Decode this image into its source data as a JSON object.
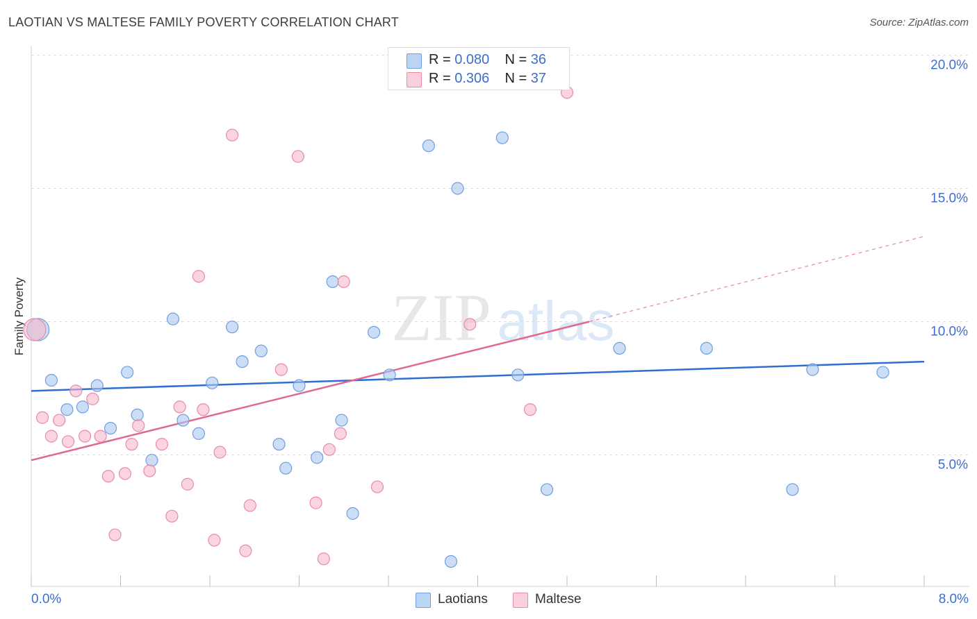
{
  "header": {
    "title": "LAOTIAN VS MALTESE FAMILY POVERTY CORRELATION CHART",
    "source": "Source: ZipAtlas.com"
  },
  "watermark": {
    "part1": "ZIP",
    "part2": "atlas"
  },
  "legend_top": [
    {
      "r_label": "R =",
      "r_value": "0.080",
      "n_label": "N =",
      "n_value": "36",
      "color": "#a8c8f0"
    },
    {
      "r_label": "R =",
      "r_value": "0.306",
      "n_label": "N =",
      "n_value": "37",
      "color": "#f7b8cb"
    }
  ],
  "legend_bottom": [
    {
      "label": "Laotians",
      "color": "#a8c8f0"
    },
    {
      "label": "Maltese",
      "color": "#f7b8cb"
    }
  ],
  "colors": {
    "laotians_fill": "#a8c8f0",
    "laotians_stroke": "#6f9ee0",
    "laotians_line": "#2f6fd1",
    "maltese_fill": "#f7b8cb",
    "maltese_stroke": "#e98aa8",
    "maltese_line": "#e06892",
    "axis_text": "#3a6fcf",
    "grid": "#dddddd"
  },
  "chart_data": {
    "type": "scatter",
    "title": "LAOTIAN VS MALTESE FAMILY POVERTY CORRELATION CHART",
    "xlabel": "",
    "ylabel": "Family Poverty",
    "xlim": [
      0.0,
      8.0
    ],
    "ylim": [
      0.0,
      20.0
    ],
    "x_tick_labels": [
      {
        "value": 0.0,
        "label": "0.0%"
      },
      {
        "value": 8.0,
        "label": "8.0%"
      }
    ],
    "y_tick_labels": [
      {
        "value": 5.0,
        "label": "5.0%"
      },
      {
        "value": 10.0,
        "label": "10.0%"
      },
      {
        "value": 15.0,
        "label": "15.0%"
      },
      {
        "value": 20.0,
        "label": "20.0%"
      }
    ],
    "grid": true,
    "legend_position": "top-center",
    "series": [
      {
        "name": "Laotians",
        "trend": {
          "x0": 0.0,
          "y0": 7.4,
          "x1": 8.0,
          "y1": 8.5
        },
        "points": [
          {
            "x": 0.06,
            "y": 9.7,
            "big": true
          },
          {
            "x": 0.18,
            "y": 7.8
          },
          {
            "x": 0.32,
            "y": 6.7
          },
          {
            "x": 0.46,
            "y": 6.8
          },
          {
            "x": 0.59,
            "y": 7.6
          },
          {
            "x": 0.71,
            "y": 6.0
          },
          {
            "x": 0.86,
            "y": 8.1
          },
          {
            "x": 0.95,
            "y": 6.5
          },
          {
            "x": 1.08,
            "y": 4.8
          },
          {
            "x": 1.27,
            "y": 10.1
          },
          {
            "x": 1.36,
            "y": 6.3
          },
          {
            "x": 1.5,
            "y": 5.8
          },
          {
            "x": 1.62,
            "y": 7.7
          },
          {
            "x": 1.8,
            "y": 9.8
          },
          {
            "x": 1.89,
            "y": 8.5
          },
          {
            "x": 2.06,
            "y": 8.9
          },
          {
            "x": 2.22,
            "y": 5.4
          },
          {
            "x": 2.28,
            "y": 4.5
          },
          {
            "x": 2.4,
            "y": 7.6
          },
          {
            "x": 2.56,
            "y": 4.9
          },
          {
            "x": 2.7,
            "y": 11.5
          },
          {
            "x": 2.78,
            "y": 6.3
          },
          {
            "x": 2.88,
            "y": 2.8
          },
          {
            "x": 3.07,
            "y": 9.6
          },
          {
            "x": 3.21,
            "y": 8.0
          },
          {
            "x": 3.56,
            "y": 16.6
          },
          {
            "x": 3.76,
            "y": 1.0
          },
          {
            "x": 3.82,
            "y": 15.0
          },
          {
            "x": 4.22,
            "y": 16.9
          },
          {
            "x": 4.36,
            "y": 8.0
          },
          {
            "x": 4.62,
            "y": 3.7
          },
          {
            "x": 5.27,
            "y": 9.0
          },
          {
            "x": 6.05,
            "y": 9.0
          },
          {
            "x": 6.82,
            "y": 3.7
          },
          {
            "x": 7.0,
            "y": 8.2
          },
          {
            "x": 7.63,
            "y": 8.1
          }
        ]
      },
      {
        "name": "Maltese",
        "trend": {
          "x0": 0.0,
          "y0": 4.8,
          "x1": 5.0,
          "y1": 10.0
        },
        "trend_extension": {
          "x0": 5.0,
          "y0": 10.0,
          "x1": 8.0,
          "y1": 13.2
        },
        "points": [
          {
            "x": 0.03,
            "y": 9.7,
            "big": true
          },
          {
            "x": 0.1,
            "y": 6.4
          },
          {
            "x": 0.18,
            "y": 5.7
          },
          {
            "x": 0.25,
            "y": 6.3
          },
          {
            "x": 0.33,
            "y": 5.5
          },
          {
            "x": 0.4,
            "y": 7.4
          },
          {
            "x": 0.48,
            "y": 5.7
          },
          {
            "x": 0.55,
            "y": 7.1
          },
          {
            "x": 0.62,
            "y": 5.7
          },
          {
            "x": 0.69,
            "y": 4.2
          },
          {
            "x": 0.75,
            "y": 2.0
          },
          {
            "x": 0.84,
            "y": 4.3
          },
          {
            "x": 0.9,
            "y": 5.4
          },
          {
            "x": 0.96,
            "y": 6.1
          },
          {
            "x": 1.06,
            "y": 4.4
          },
          {
            "x": 1.17,
            "y": 5.4
          },
          {
            "x": 1.26,
            "y": 2.7
          },
          {
            "x": 1.33,
            "y": 6.8
          },
          {
            "x": 1.4,
            "y": 3.9
          },
          {
            "x": 1.5,
            "y": 11.7
          },
          {
            "x": 1.54,
            "y": 6.7
          },
          {
            "x": 1.64,
            "y": 1.8
          },
          {
            "x": 1.69,
            "y": 5.1
          },
          {
            "x": 1.8,
            "y": 17.0
          },
          {
            "x": 1.92,
            "y": 1.4
          },
          {
            "x": 1.96,
            "y": 3.1
          },
          {
            "x": 2.24,
            "y": 8.2
          },
          {
            "x": 2.39,
            "y": 16.2
          },
          {
            "x": 2.55,
            "y": 3.2
          },
          {
            "x": 2.62,
            "y": 1.1
          },
          {
            "x": 2.67,
            "y": 5.2
          },
          {
            "x": 2.77,
            "y": 5.8
          },
          {
            "x": 2.8,
            "y": 11.5
          },
          {
            "x": 3.1,
            "y": 3.8
          },
          {
            "x": 3.93,
            "y": 9.9
          },
          {
            "x": 4.47,
            "y": 6.7
          },
          {
            "x": 4.8,
            "y": 18.6
          }
        ]
      }
    ]
  }
}
